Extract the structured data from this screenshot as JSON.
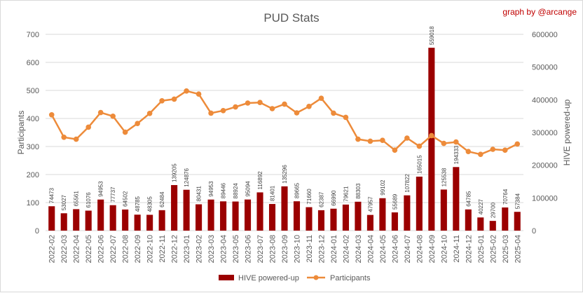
{
  "chart_data": {
    "type": "bar",
    "title": "PUD Stats",
    "credit": "graph by @arcange",
    "ylabel_left": "Participants",
    "ylabel_right": "HIVE powered-up",
    "ylim_left": [
      0,
      700
    ],
    "ylim_right": [
      0,
      600000
    ],
    "yticks_left": [
      "0",
      "100",
      "200",
      "300",
      "400",
      "500",
      "600",
      "700"
    ],
    "yticks_right": [
      "0",
      "100000",
      "200000",
      "300000",
      "400000",
      "500000",
      "600000"
    ],
    "grid": true,
    "legend_position": "bottom",
    "colors": {
      "bar": "#9b0000",
      "line": "#ed8b3a",
      "grid": "#d9d9d9",
      "text": "#595959"
    },
    "categories": [
      "2022-02",
      "2022-03",
      "2022-04",
      "2022-05",
      "2022-06",
      "2022-07",
      "2022-08",
      "2022-09",
      "2022-10",
      "2022-11",
      "2022-12",
      "2023-01",
      "2023-02",
      "2023-03",
      "2023-04",
      "2023-05",
      "2023-06",
      "2023-07",
      "2023-08",
      "2023-09",
      "2023-10",
      "2023-11",
      "2023-12",
      "2024-01",
      "2024-02",
      "2024-03",
      "2024-04",
      "2024-05",
      "2024-06",
      "2024-07",
      "2024-08",
      "2024-09",
      "2024-10",
      "2024-11",
      "2024-12",
      "2025-01",
      "2025-02",
      "2025-03",
      "2025-04"
    ],
    "series": [
      {
        "name": "HIVE powered-up",
        "type": "bar",
        "axis": "right",
        "values": [
          74473,
          53027,
          65561,
          61076,
          94953,
          77737,
          64502,
          48785,
          48305,
          62484,
          139205,
          124876,
          80431,
          94953,
          89446,
          88924,
          95094,
          116892,
          81401,
          135296,
          89665,
          71660,
          62387,
          66990,
          79621,
          88303,
          47957,
          99102,
          55689,
          107822,
          165015,
          559018,
          125538,
          194333,
          64785,
          40227,
          29700,
          70764,
          57384
        ]
      },
      {
        "name": "Participants",
        "type": "line",
        "axis": "left",
        "values": [
          413,
          333,
          326,
          369,
          421,
          408,
          351,
          382,
          418,
          463,
          469,
          498,
          487,
          419,
          428,
          441,
          455,
          457,
          435,
          451,
          420,
          443,
          472,
          419,
          404,
          326,
          319,
          322,
          287,
          330,
          301,
          339,
          311,
          316,
          282,
          272,
          290,
          287,
          309
        ]
      }
    ]
  }
}
